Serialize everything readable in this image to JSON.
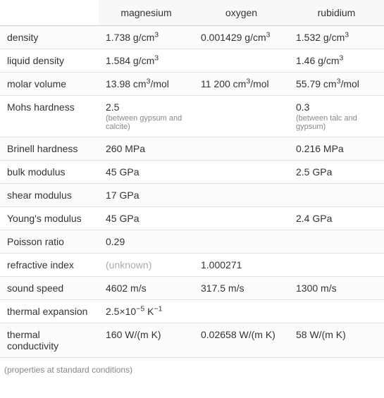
{
  "columns": [
    "magnesium",
    "oxygen",
    "rubidium"
  ],
  "rows": [
    {
      "label": "density",
      "values": [
        {
          "main": "1.738 g/cm",
          "sup": "3"
        },
        {
          "main": "0.001429 g/cm",
          "sup": "3"
        },
        {
          "main": "1.532 g/cm",
          "sup": "3"
        }
      ]
    },
    {
      "label": "liquid density",
      "values": [
        {
          "main": "1.584 g/cm",
          "sup": "3"
        },
        {
          "main": ""
        },
        {
          "main": "1.46 g/cm",
          "sup": "3"
        }
      ]
    },
    {
      "label": "molar volume",
      "values": [
        {
          "main": "13.98 cm",
          "sup": "3",
          "suffix": "/mol"
        },
        {
          "main": "11 200 cm",
          "sup": "3",
          "suffix": "/mol"
        },
        {
          "main": "55.79 cm",
          "sup": "3",
          "suffix": "/mol"
        }
      ]
    },
    {
      "label": "Mohs hardness",
      "values": [
        {
          "main": "2.5",
          "sub": "(between gypsum and calcite)"
        },
        {
          "main": ""
        },
        {
          "main": "0.3",
          "sub": "(between talc and gypsum)"
        }
      ]
    },
    {
      "label": "Brinell hardness",
      "values": [
        {
          "main": "260 MPa"
        },
        {
          "main": ""
        },
        {
          "main": "0.216 MPa"
        }
      ]
    },
    {
      "label": "bulk modulus",
      "values": [
        {
          "main": "45 GPa"
        },
        {
          "main": ""
        },
        {
          "main": "2.5 GPa"
        }
      ]
    },
    {
      "label": "shear modulus",
      "values": [
        {
          "main": "17 GPa"
        },
        {
          "main": ""
        },
        {
          "main": ""
        }
      ]
    },
    {
      "label": "Young's modulus",
      "values": [
        {
          "main": "45 GPa"
        },
        {
          "main": ""
        },
        {
          "main": "2.4 GPa"
        }
      ]
    },
    {
      "label": "Poisson ratio",
      "values": [
        {
          "main": "0.29"
        },
        {
          "main": ""
        },
        {
          "main": ""
        }
      ]
    },
    {
      "label": "refractive index",
      "values": [
        {
          "main": "(unknown)",
          "unknown": true
        },
        {
          "main": "1.000271"
        },
        {
          "main": ""
        }
      ]
    },
    {
      "label": "sound speed",
      "values": [
        {
          "main": "4602 m/s"
        },
        {
          "main": "317.5 m/s"
        },
        {
          "main": "1300 m/s"
        }
      ]
    },
    {
      "label": "thermal expansion",
      "values": [
        {
          "main": "2.5×10",
          "sup": "−5",
          "suffix": " K",
          "sup2": "−1"
        },
        {
          "main": ""
        },
        {
          "main": ""
        }
      ]
    },
    {
      "label": "thermal conductivity",
      "values": [
        {
          "main": "160 W/(m K)"
        },
        {
          "main": "0.02658 W/(m K)"
        },
        {
          "main": "58 W/(m K)"
        }
      ]
    }
  ],
  "footnote": "(properties at standard conditions)",
  "colors": {
    "border": "#e0e0e0",
    "header_bg": "#f8f8f8",
    "text": "#333333",
    "subtext": "#888888",
    "unknown": "#aaaaaa"
  }
}
